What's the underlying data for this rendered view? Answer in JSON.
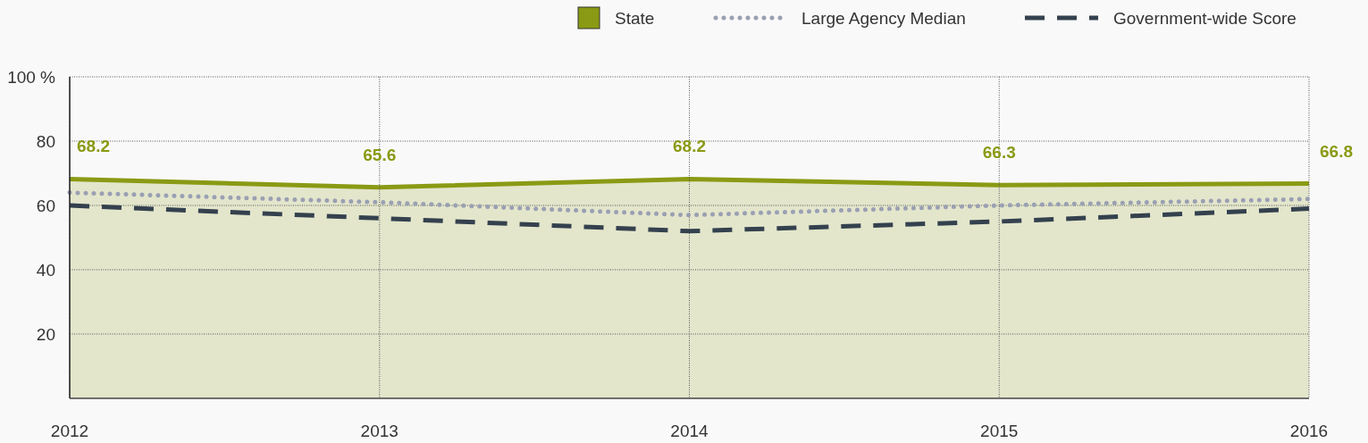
{
  "chart_data": {
    "type": "line",
    "x": [
      2012,
      2013,
      2014,
      2015,
      2016
    ],
    "xlim": [
      2012,
      2016
    ],
    "xticks": [
      2012,
      2013,
      2014,
      2015,
      2016
    ],
    "ylim": [
      0,
      100
    ],
    "yticks": [
      20,
      40,
      60,
      80,
      {
        "value": 100,
        "label": "100 %"
      }
    ],
    "grid": true,
    "legend": "top right",
    "series": [
      {
        "name": "State",
        "type": "area",
        "color": "#8a9a14",
        "values": [
          68.2,
          65.6,
          68.2,
          66.3,
          66.8
        ],
        "value_labels": [
          "68.2",
          "65.6",
          "68.2",
          "66.3",
          "66.8"
        ]
      },
      {
        "name": "Large Agency Median",
        "color": "#9aa0b2",
        "line_style": "dotted",
        "values": [
          64,
          61,
          57,
          60,
          62
        ]
      },
      {
        "name": "Government-wide Score",
        "color": "#34414e",
        "line_style": "dashed",
        "values": [
          60,
          56,
          52,
          55,
          59
        ]
      }
    ]
  }
}
